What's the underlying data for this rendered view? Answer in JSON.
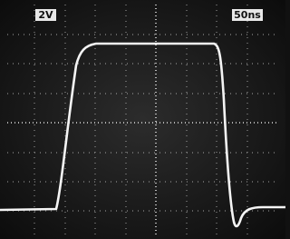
{
  "labels": {
    "volts_per_div": "2V",
    "time_per_div": "50ns"
  }
}
